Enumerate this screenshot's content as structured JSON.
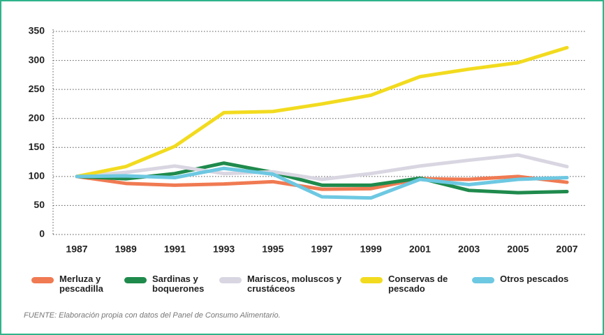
{
  "chart_data": {
    "type": "line",
    "categories": [
      "1987",
      "1989",
      "1991",
      "1993",
      "1995",
      "1997",
      "1999",
      "2001",
      "2003",
      "2005",
      "2007"
    ],
    "series": [
      {
        "name": "Merluza y pescadilla",
        "color": "#f07a52",
        "values": [
          100,
          88,
          85,
          87,
          91,
          78,
          79,
          96,
          95,
          100,
          90
        ]
      },
      {
        "name": "Sardinas y boquerones",
        "color": "#1f8a4c",
        "values": [
          100,
          96,
          105,
          123,
          107,
          85,
          85,
          97,
          76,
          72,
          74
        ]
      },
      {
        "name": "Mariscos, moluscos y crustáceos",
        "color": "#d9d6e2",
        "values": [
          100,
          107,
          118,
          105,
          108,
          95,
          105,
          118,
          128,
          137,
          117
        ]
      },
      {
        "name": "Conservas de pescado",
        "color": "#f2db1f",
        "values": [
          100,
          117,
          152,
          210,
          212,
          225,
          240,
          272,
          285,
          296,
          322
        ]
      },
      {
        "name": "Otros pescados",
        "color": "#6dc8e2",
        "values": [
          100,
          101,
          98,
          114,
          104,
          65,
          63,
          95,
          86,
          95,
          98
        ]
      }
    ],
    "ylim": [
      0,
      350
    ],
    "yticks": [
      0,
      50,
      100,
      150,
      200,
      250,
      300,
      350
    ],
    "grid": true,
    "source": "FUENTE: Elaboración propia con datos del Panel de Consumo Alimentario."
  }
}
